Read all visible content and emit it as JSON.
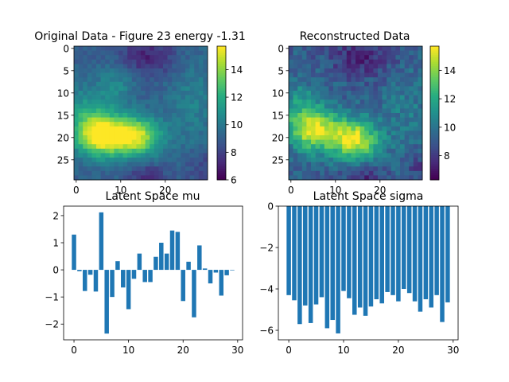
{
  "chart_data": [
    {
      "type": "heatmap",
      "title": "Original Data - Figure 23 energy -1.31",
      "rows": 30,
      "cols": 30,
      "xticks": [
        0,
        10,
        20
      ],
      "yticks": [
        0,
        5,
        10,
        15,
        20,
        25
      ],
      "colormap": "viridis",
      "vmin": 6,
      "vmax": 15.7,
      "colorbar_ticks": [
        6,
        8,
        10,
        12,
        14
      ],
      "blobs": [
        {
          "cx": 5.5,
          "cy": 19.5,
          "sx": 4.0,
          "sy": 3.2,
          "amp": 7.2
        },
        {
          "cx": 13.5,
          "cy": 19.8,
          "sx": 3.8,
          "sy": 3.0,
          "amp": 6.0
        },
        {
          "cx": 2.0,
          "cy": 14.0,
          "sx": 3.5,
          "sy": 4.0,
          "amp": 2.0
        },
        {
          "cx": 9.0,
          "cy": 8.0,
          "sx": 3.0,
          "sy": 4.0,
          "amp": 1.5
        },
        {
          "cx": 26.0,
          "cy": 12.0,
          "sx": 4.0,
          "sy": 8.0,
          "amp": 1.2
        }
      ],
      "base": 9.0,
      "noise": 0.5
    },
    {
      "type": "heatmap",
      "title": "Reconstructed Data",
      "rows": 30,
      "cols": 30,
      "xticks": [
        0,
        10,
        20
      ],
      "yticks": [
        0,
        5,
        10,
        15,
        20,
        25
      ],
      "colormap": "viridis",
      "vmin": 6.3,
      "vmax": 15.7,
      "colorbar_ticks": [
        8,
        10,
        12,
        14
      ],
      "blobs": [
        {
          "cx": 5.5,
          "cy": 18.5,
          "sx": 4.0,
          "sy": 3.2,
          "amp": 6.0
        },
        {
          "cx": 14.5,
          "cy": 20.5,
          "sx": 3.5,
          "sy": 3.2,
          "amp": 6.0
        },
        {
          "cx": 2.0,
          "cy": 13.0,
          "sx": 3.5,
          "sy": 4.0,
          "amp": 2.0
        },
        {
          "cx": 26.0,
          "cy": 14.0,
          "sx": 4.0,
          "sy": 8.0,
          "amp": 1.0
        }
      ],
      "base": 9.2,
      "noise": 0.9
    },
    {
      "type": "bar",
      "title": "Latent Space mu",
      "x": [
        0,
        1,
        2,
        3,
        4,
        5,
        6,
        7,
        8,
        9,
        10,
        11,
        12,
        13,
        14,
        15,
        16,
        17,
        18,
        19,
        20,
        21,
        22,
        23,
        24,
        25,
        26,
        27,
        28,
        29
      ],
      "values": [
        1.3,
        -0.05,
        -0.78,
        -0.18,
        -0.8,
        2.12,
        -2.35,
        -1.0,
        0.32,
        -0.65,
        -1.45,
        -0.33,
        0.6,
        -0.45,
        -0.45,
        0.48,
        1.0,
        0.6,
        1.45,
        1.4,
        -1.15,
        0.3,
        -1.75,
        0.9,
        0.05,
        -0.5,
        -0.1,
        -0.95,
        -0.2,
        0.0
      ],
      "xticks": [
        0,
        10,
        20,
        30
      ],
      "yticks": [
        -2,
        -1,
        0,
        1,
        2
      ],
      "xlim": [
        -1.9,
        30.9
      ],
      "ylim": [
        -2.58,
        2.35
      ],
      "color": "#1f77b4"
    },
    {
      "type": "bar",
      "title": "Latent Space sigma",
      "x": [
        0,
        1,
        2,
        3,
        4,
        5,
        6,
        7,
        8,
        9,
        10,
        11,
        12,
        13,
        14,
        15,
        16,
        17,
        18,
        19,
        20,
        21,
        22,
        23,
        24,
        25,
        26,
        27,
        28,
        29
      ],
      "values": [
        -4.3,
        -4.55,
        -5.7,
        -4.8,
        -5.65,
        -4.75,
        -4.4,
        -5.9,
        -5.5,
        -6.15,
        -4.1,
        -4.45,
        -5.25,
        -4.9,
        -5.3,
        -4.85,
        -4.5,
        -4.7,
        -4.15,
        -4.3,
        -4.6,
        -4.0,
        -4.2,
        -4.6,
        -5.1,
        -4.5,
        -4.9,
        -4.3,
        -5.6,
        -4.65
      ],
      "xticks": [
        0,
        10,
        20,
        30
      ],
      "yticks": [
        0,
        -2,
        -4,
        -6
      ],
      "xlim": [
        -1.9,
        30.9
      ],
      "ylim": [
        -6.46,
        0
      ],
      "color": "#1f77b4"
    }
  ]
}
